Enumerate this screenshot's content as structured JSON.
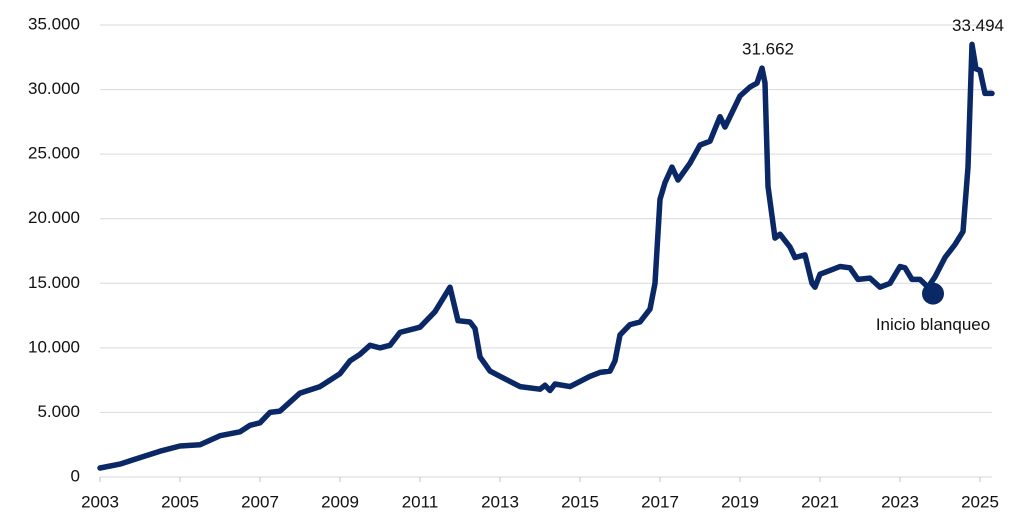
{
  "chart_data": {
    "type": "line",
    "x": [
      2003,
      2003.5,
      2004,
      2004.5,
      2005,
      2005.5,
      2006,
      2006.5,
      2006.75,
      2007,
      2007.25,
      2007.5,
      2008,
      2008.5,
      2009,
      2009.25,
      2009.5,
      2009.75,
      2010,
      2010.25,
      2010.5,
      2011,
      2011.375,
      2011.75,
      2011.95,
      2012.25,
      2012.375,
      2012.5,
      2012.75,
      2013,
      2013.5,
      2014,
      2014.125,
      2014.25,
      2014.375,
      2014.75,
      2015.25,
      2015.5,
      2015.75,
      2015.875,
      2016,
      2016.25,
      2016.5,
      2016.75,
      2016.875,
      2017,
      2017.125,
      2017.3,
      2017.45,
      2017.75,
      2018,
      2018.25,
      2018.5,
      2018.625,
      2019,
      2019.25,
      2019.425,
      2019.55,
      2019.625,
      2019.7,
      2019.875,
      2020,
      2020.25,
      2020.375,
      2020.625,
      2020.8,
      2020.875,
      2021,
      2021.25,
      2021.5,
      2021.75,
      2021.95,
      2022.25,
      2022.5,
      2022.75,
      2023,
      2023.125,
      2023.3,
      2023.5,
      2023.7,
      2023.875,
      2024.125,
      2024.375,
      2024.575,
      2024.7,
      2024.8,
      2024.9,
      2025,
      2025.125,
      2025.3
    ],
    "series": [
      {
        "color": "#0b2866",
        "values": [
          700,
          1000,
          1500,
          2000,
          2400,
          2500,
          3200,
          3500,
          4000,
          4200,
          5000,
          5100,
          6500,
          7000,
          8000,
          9000,
          9500,
          10200,
          10000,
          10200,
          11200,
          11600,
          12800,
          14700,
          12100,
          12000,
          11500,
          9300,
          8200,
          7800,
          7000,
          6800,
          7100,
          6700,
          7200,
          7000,
          7800,
          8100,
          8200,
          9000,
          11000,
          11800,
          12000,
          13000,
          15000,
          21500,
          22800,
          24000,
          23000,
          24300,
          25700,
          26000,
          27900,
          27100,
          29500,
          30200,
          30500,
          31662,
          30500,
          22500,
          18500,
          18800,
          17800,
          17000,
          17200,
          15000,
          14700,
          15700,
          16000,
          16300,
          16200,
          15300,
          15400,
          14700,
          15000,
          16300,
          16200,
          15300,
          15300,
          14700,
          15500,
          17000,
          18000,
          19000,
          24000,
          33494,
          31600,
          31500,
          29700,
          29700
        ]
      }
    ],
    "xlim": [
      2003,
      2025.3
    ],
    "xticks": [
      2003,
      2005,
      2007,
      2009,
      2011,
      2013,
      2015,
      2017,
      2019,
      2021,
      2023,
      2025
    ],
    "ylim": [
      0,
      35000
    ],
    "yticks": [
      0,
      {
        "value": 5000,
        "label": "5.000"
      },
      {
        "value": 10000,
        "label": "10.000"
      },
      {
        "value": 15000,
        "label": "15.000"
      },
      {
        "value": 20000,
        "label": "20.000"
      },
      {
        "value": 25000,
        "label": "25.000"
      },
      {
        "value": 30000,
        "label": "30.000"
      },
      {
        "value": 35000,
        "label": "35.000"
      }
    ],
    "grid": true,
    "annotations": [
      {
        "text": "31.662",
        "x": 2019.55,
        "y": 31662
      },
      {
        "text": "33.494",
        "x": 2024.8,
        "y": 33494
      },
      {
        "text": "Inicio blanqueo",
        "x": 2023.825,
        "y": 14200,
        "marker": true
      }
    ]
  }
}
